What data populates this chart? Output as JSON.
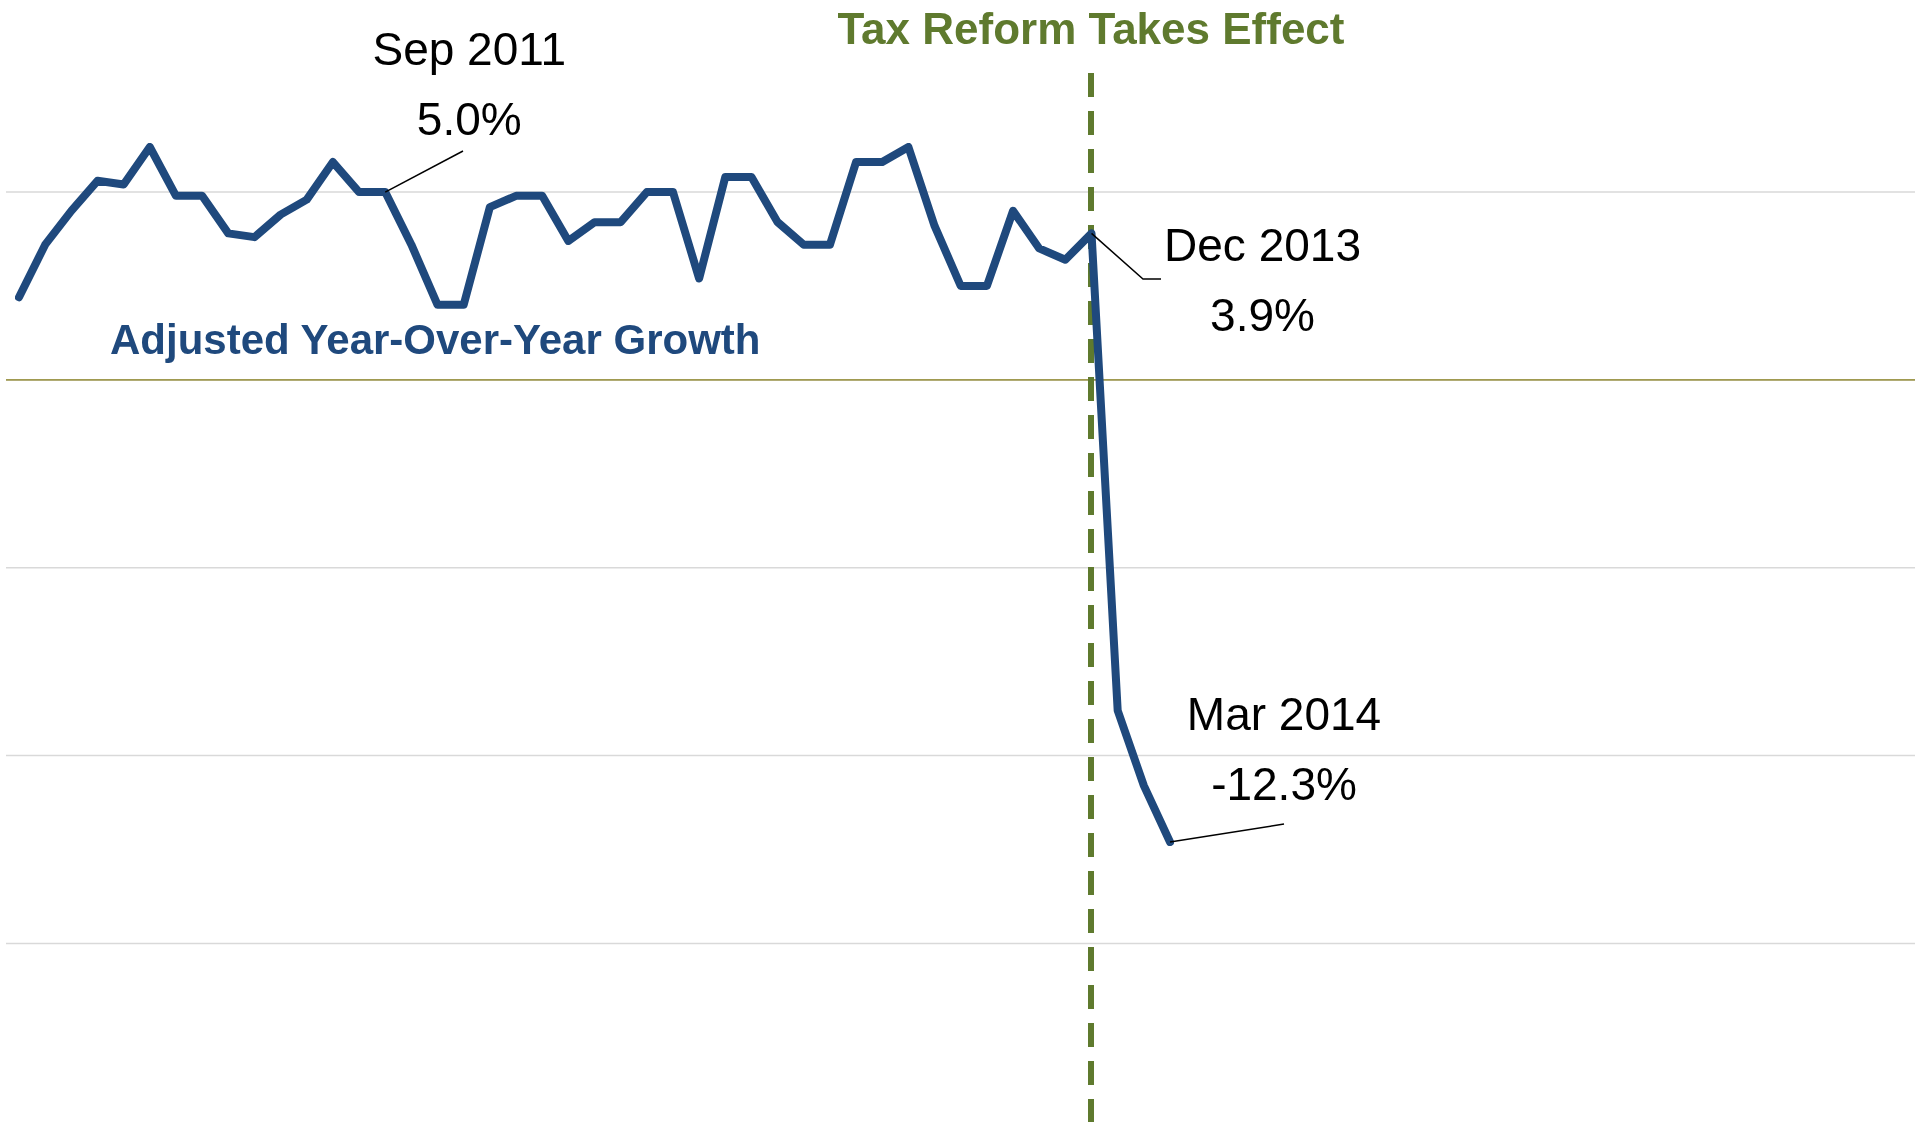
{
  "chart_data": {
    "type": "line",
    "categories": [
      null,
      null,
      null,
      null,
      null,
      null,
      null,
      null,
      null,
      null,
      null,
      null,
      null,
      null,
      null,
      null,
      null,
      null,
      null,
      null,
      null,
      null,
      null,
      null,
      null,
      null,
      null,
      null,
      null,
      null,
      null,
      null,
      null,
      null,
      null,
      null,
      null,
      null,
      null,
      null,
      null,
      null,
      null,
      null,
      null
    ],
    "series": [
      {
        "name": "Adjusted Year-Over-Year Growth",
        "color": "#1f497d",
        "values": [
          2.2,
          3.6,
          4.5,
          5.3,
          5.2,
          6.2,
          4.9,
          4.9,
          3.9,
          3.8,
          4.4,
          4.8,
          5.8,
          5.0,
          5.0,
          3.6,
          2.0,
          2.0,
          4.6,
          4.9,
          4.9,
          3.7,
          4.2,
          4.2,
          5.0,
          5.0,
          2.7,
          5.4,
          5.4,
          4.2,
          3.6,
          3.6,
          5.8,
          5.8,
          6.2,
          4.1,
          2.5,
          2.5,
          4.5,
          3.5,
          3.2,
          3.9,
          -8.8,
          -10.8,
          -12.3
        ],
        "value_labels": [
          null,
          null,
          null,
          null,
          null,
          null,
          null,
          null,
          null,
          null,
          null,
          null,
          null,
          null,
          "Sep 2011\n5.0%",
          null,
          null,
          null,
          null,
          null,
          null,
          null,
          null,
          null,
          null,
          null,
          null,
          null,
          null,
          null,
          null,
          null,
          null,
          null,
          null,
          null,
          null,
          null,
          null,
          null,
          null,
          "Dec 2013\n3.9%",
          null,
          null,
          "Mar 2014\n-12.3%"
        ]
      }
    ],
    "annotations": [
      "Tax Reform Takes Effect"
    ],
    "yticks": [
      {
        "value": 5,
        "label": null
      },
      {
        "value": 0,
        "label": null
      },
      {
        "value": -5,
        "label": null
      },
      {
        "value": -10,
        "label": null
      },
      {
        "value": -15,
        "label": null
      }
    ],
    "grid": "y",
    "ref_lines": [
      {
        "axis": "y",
        "value": 0,
        "color": "#a09a50",
        "line_style": "solid"
      }
    ],
    "marker": "none",
    "line_style": "solid",
    "legend": false
  }
}
